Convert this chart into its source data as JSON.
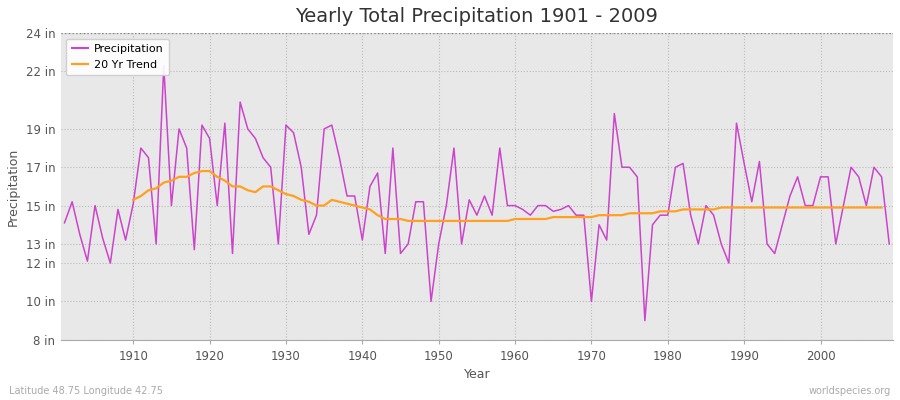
{
  "title": "Yearly Total Precipitation 1901 - 2009",
  "xlabel": "Year",
  "ylabel": "Precipitation",
  "bottom_left": "Latitude 48.75 Longitude 42.75",
  "bottom_right": "worldspecies.org",
  "years": [
    1901,
    1902,
    1903,
    1904,
    1905,
    1906,
    1907,
    1908,
    1909,
    1910,
    1911,
    1912,
    1913,
    1914,
    1915,
    1916,
    1917,
    1918,
    1919,
    1920,
    1921,
    1922,
    1923,
    1924,
    1925,
    1926,
    1927,
    1928,
    1929,
    1930,
    1931,
    1932,
    1933,
    1934,
    1935,
    1936,
    1937,
    1938,
    1939,
    1940,
    1941,
    1942,
    1943,
    1944,
    1945,
    1946,
    1947,
    1948,
    1949,
    1950,
    1951,
    1952,
    1953,
    1954,
    1955,
    1956,
    1957,
    1958,
    1959,
    1960,
    1961,
    1962,
    1963,
    1964,
    1965,
    1966,
    1967,
    1968,
    1969,
    1970,
    1971,
    1972,
    1973,
    1974,
    1975,
    1976,
    1977,
    1978,
    1979,
    1980,
    1981,
    1982,
    1983,
    1984,
    1985,
    1986,
    1987,
    1988,
    1989,
    1990,
    1991,
    1992,
    1993,
    1994,
    1995,
    1996,
    1997,
    1998,
    1999,
    2000,
    2001,
    2002,
    2003,
    2004,
    2005,
    2006,
    2007,
    2008,
    2009
  ],
  "precip": [
    14.1,
    15.2,
    13.5,
    12.1,
    15.0,
    13.3,
    12.0,
    14.8,
    13.2,
    15.1,
    18.0,
    17.5,
    13.0,
    22.3,
    15.0,
    19.0,
    18.0,
    12.7,
    19.2,
    18.5,
    15.0,
    19.3,
    12.5,
    20.4,
    19.0,
    18.5,
    17.5,
    17.0,
    13.0,
    19.2,
    18.8,
    17.0,
    13.5,
    14.5,
    19.0,
    19.2,
    17.5,
    15.5,
    15.5,
    13.2,
    16.0,
    16.7,
    12.5,
    18.0,
    12.5,
    13.0,
    15.2,
    15.2,
    10.0,
    13.0,
    15.0,
    18.0,
    13.0,
    15.3,
    14.5,
    15.5,
    14.5,
    18.0,
    15.0,
    15.0,
    14.8,
    14.5,
    15.0,
    15.0,
    14.7,
    14.8,
    15.0,
    14.5,
    14.5,
    10.0,
    14.0,
    13.2,
    19.8,
    17.0,
    17.0,
    16.5,
    9.0,
    14.0,
    14.5,
    14.5,
    17.0,
    17.2,
    14.5,
    13.0,
    15.0,
    14.5,
    13.0,
    12.0,
    19.3,
    17.2,
    15.2,
    17.3,
    13.0,
    12.5,
    14.0,
    15.5,
    16.5,
    15.0,
    15.0,
    16.5,
    16.5,
    13.0,
    15.0,
    17.0,
    16.5,
    15.0,
    17.0,
    16.5,
    13.0
  ],
  "trend": [
    null,
    null,
    null,
    null,
    null,
    null,
    null,
    null,
    null,
    15.3,
    15.5,
    15.8,
    15.9,
    16.2,
    16.3,
    16.5,
    16.5,
    16.7,
    16.8,
    16.8,
    16.5,
    16.3,
    16.0,
    16.0,
    15.8,
    15.7,
    16.0,
    16.0,
    15.8,
    15.6,
    15.5,
    15.3,
    15.2,
    15.0,
    15.0,
    15.3,
    15.2,
    15.1,
    15.0,
    14.9,
    14.8,
    14.5,
    14.3,
    14.3,
    14.3,
    14.2,
    14.2,
    14.2,
    14.2,
    14.2,
    14.2,
    14.2,
    14.2,
    14.2,
    14.2,
    14.2,
    14.2,
    14.2,
    14.2,
    14.3,
    14.3,
    14.3,
    14.3,
    14.3,
    14.4,
    14.4,
    14.4,
    14.4,
    14.4,
    14.4,
    14.5,
    14.5,
    14.5,
    14.5,
    14.6,
    14.6,
    14.6,
    14.6,
    14.7,
    14.7,
    14.7,
    14.8,
    14.8,
    14.8,
    14.8,
    14.8,
    14.9,
    14.9,
    14.9,
    14.9,
    14.9,
    14.9,
    14.9,
    14.9,
    14.9,
    14.9,
    14.9,
    14.9,
    14.9,
    14.9,
    14.9,
    14.9,
    14.9,
    14.9,
    14.9,
    14.9,
    14.9,
    14.9
  ],
  "ylim": [
    8,
    24
  ],
  "yticks": [
    8,
    10,
    12,
    13,
    15,
    17,
    19,
    22,
    24
  ],
  "ytick_labels": [
    "8 in",
    "10 in",
    "12 in",
    "13 in",
    "15 in",
    "17 in",
    "19 in",
    "22 in",
    "24 in"
  ],
  "xlim": [
    1901,
    2009
  ],
  "xticks": [
    1910,
    1920,
    1930,
    1940,
    1950,
    1960,
    1970,
    1980,
    1990,
    2000
  ],
  "precip_color": "#CC44CC",
  "trend_color": "#FFA020",
  "fig_bg_color": "#FFFFFF",
  "plot_bg_color": "#E8E8E8",
  "grid_color": "#BBBBBB",
  "title_fontsize": 14,
  "label_fontsize": 9,
  "tick_fontsize": 8.5
}
